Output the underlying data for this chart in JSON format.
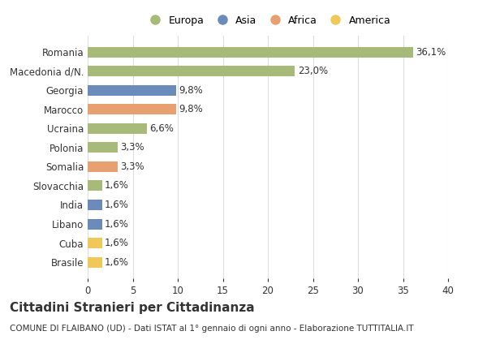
{
  "categories": [
    "Brasile",
    "Cuba",
    "Libano",
    "India",
    "Slovacchia",
    "Somalia",
    "Polonia",
    "Ucraina",
    "Marocco",
    "Georgia",
    "Macedonia d/N.",
    "Romania"
  ],
  "values": [
    1.6,
    1.6,
    1.6,
    1.6,
    1.6,
    3.3,
    3.3,
    6.6,
    9.8,
    9.8,
    23.0,
    36.1
  ],
  "labels": [
    "1,6%",
    "1,6%",
    "1,6%",
    "1,6%",
    "1,6%",
    "3,3%",
    "3,3%",
    "6,6%",
    "9,8%",
    "9,8%",
    "23,0%",
    "36,1%"
  ],
  "colors": [
    "#f0c85a",
    "#f0c85a",
    "#6b8cba",
    "#6b8cba",
    "#a8ba7a",
    "#e8a070",
    "#a8ba7a",
    "#a8ba7a",
    "#e8a070",
    "#6b8cba",
    "#a8ba7a",
    "#a8ba7a"
  ],
  "legend_labels": [
    "Europa",
    "Asia",
    "Africa",
    "America"
  ],
  "legend_colors": [
    "#a8ba7a",
    "#6b8cba",
    "#e8a070",
    "#f0c85a"
  ],
  "title": "Cittadini Stranieri per Cittadinanza",
  "subtitle": "COMUNE DI FLAIBANO (UD) - Dati ISTAT al 1° gennaio di ogni anno - Elaborazione TUTTITALIA.IT",
  "xlim": [
    0,
    40
  ],
  "xticks": [
    0,
    5,
    10,
    15,
    20,
    25,
    30,
    35,
    40
  ],
  "background_color": "#ffffff",
  "bar_height": 0.55,
  "grid_color": "#dddddd",
  "text_color": "#333333",
  "title_fontsize": 11,
  "subtitle_fontsize": 7.5,
  "tick_fontsize": 8.5,
  "label_fontsize": 8.5
}
